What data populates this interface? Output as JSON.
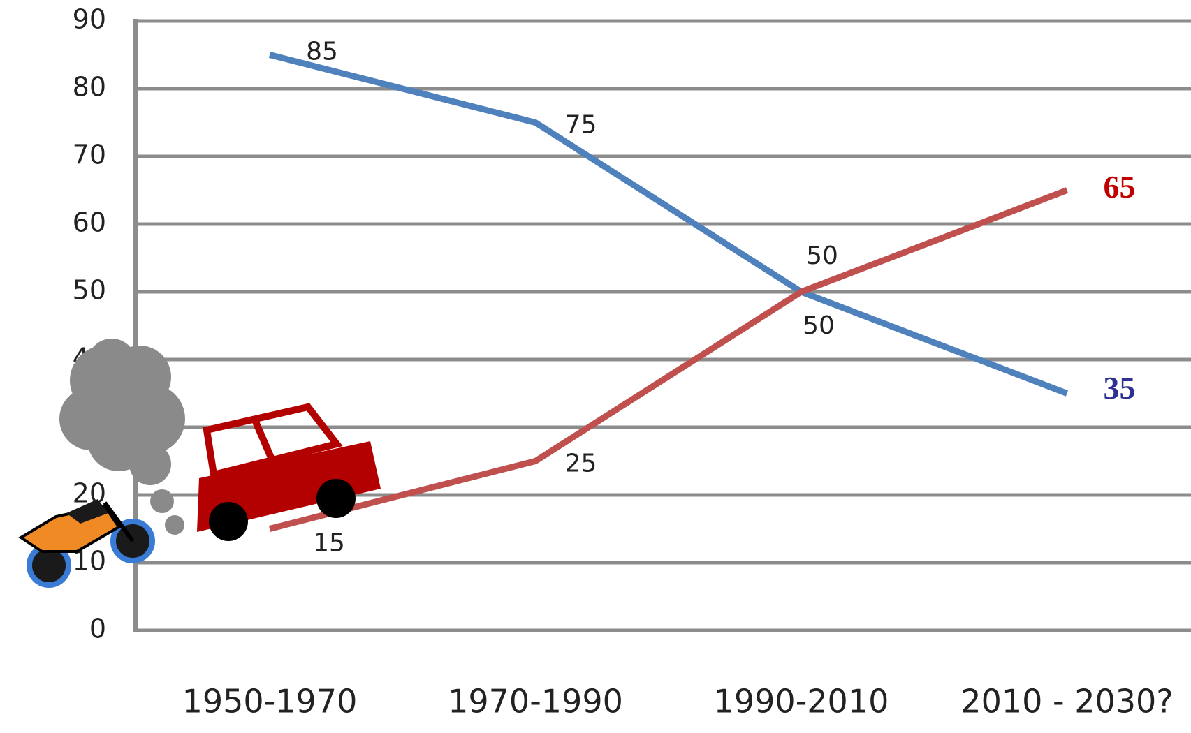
{
  "chart_data": {
    "type": "line",
    "categories": [
      "1950-1970",
      "1970-1990",
      "1990-2010",
      "2010 - 2030?"
    ],
    "series": [
      {
        "color": "#4f81bd",
        "label_color": "#2e3192",
        "values": [
          85,
          75,
          50,
          35
        ]
      },
      {
        "color": "#c0504d",
        "label_color": "#c00000",
        "values": [
          15,
          25,
          50,
          65
        ]
      }
    ],
    "ylim": [
      0,
      90
    ],
    "yticks": [
      0,
      10,
      20,
      30,
      40,
      50,
      60,
      70,
      80,
      90
    ],
    "grid": true
  }
}
